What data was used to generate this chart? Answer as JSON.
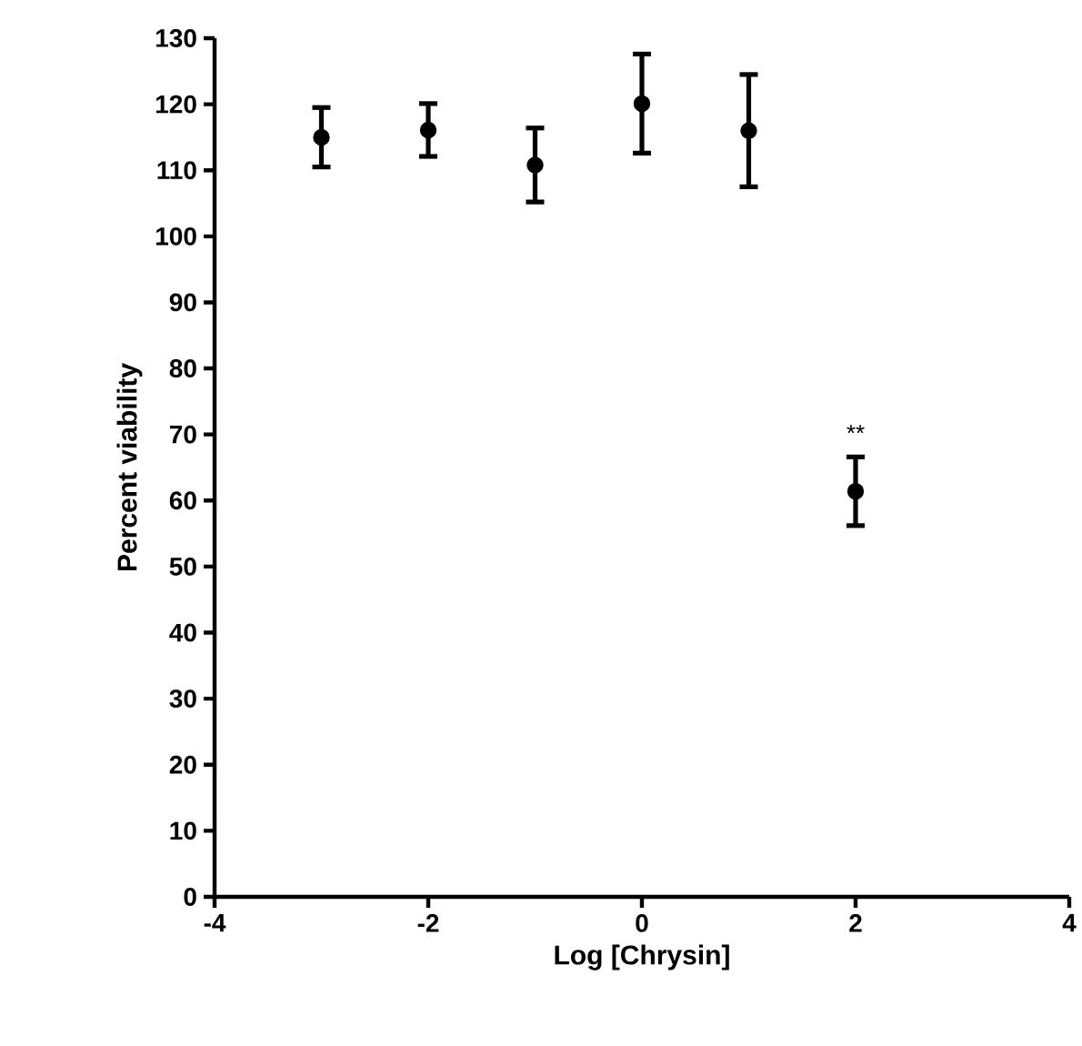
{
  "chart_data": {
    "type": "scatter",
    "xlabel": "Log [Chrysin]",
    "ylabel": "Percent viability",
    "marker": "circle",
    "grid": false,
    "x": [
      -3,
      -2,
      -1,
      0,
      1,
      2
    ],
    "series": [
      {
        "color": "#000000",
        "values": [
          115,
          116.1,
          110.8,
          120.1,
          116,
          61.4
        ],
        "errors": [
          4.5,
          4,
          5.6,
          7.5,
          8.5,
          5.2
        ]
      }
    ],
    "xlim": [
      -4,
      4
    ],
    "xticks": [
      -4,
      -2,
      0,
      2,
      4
    ],
    "ylim": [
      0,
      130
    ],
    "yticks": [
      0,
      10,
      20,
      30,
      40,
      50,
      60,
      70,
      80,
      90,
      100,
      110,
      120,
      130
    ],
    "annotations": [
      {
        "text": "**",
        "x": 2,
        "y": 61.4
      }
    ]
  }
}
